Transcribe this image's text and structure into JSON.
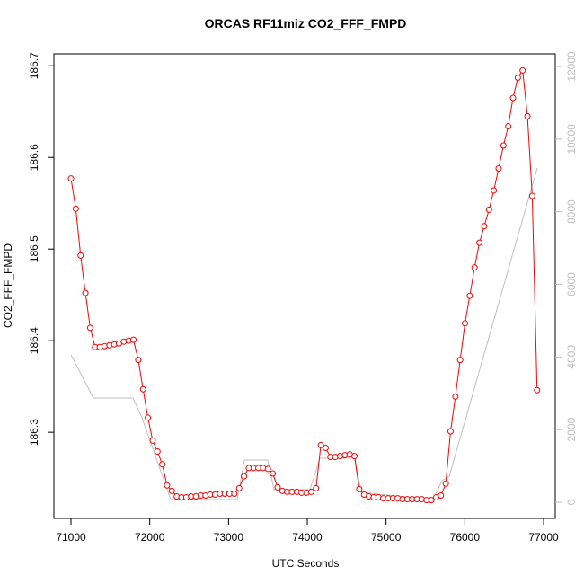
{
  "chart_data": {
    "type": "line",
    "title": "ORCAS RF11miz CO2_FFF_FMPD",
    "x_label": "UTC Seconds",
    "y_label": "CO2_FFF_FMPD",
    "xlim": [
      70783,
      77148
    ],
    "xticks": [
      71000,
      72000,
      73000,
      74000,
      75000,
      76000,
      77000
    ],
    "ylim": [
      186.206,
      186.713
    ],
    "yticks": [
      186.3,
      186.4,
      186.5,
      186.6,
      186.7
    ],
    "y2lim": [
      -445,
      12346
    ],
    "y2ticks": [
      0,
      2000,
      4000,
      6000,
      8000,
      10000,
      12000
    ],
    "series": [
      {
        "color": "#ff0000",
        "markers": true,
        "x": [
          71000,
          71061,
          71122,
          71183,
          71244,
          71305,
          71366,
          71427,
          71488,
          71549,
          71610,
          71671,
          71732,
          71793,
          71854,
          71915,
          71976,
          72037,
          72098,
          72159,
          72220,
          72281,
          72342,
          72403,
          72464,
          72525,
          72586,
          72647,
          72708,
          72769,
          72830,
          72891,
          72952,
          73013,
          73074,
          73135,
          73196,
          73257,
          73318,
          73379,
          73440,
          73501,
          73562,
          73623,
          73684,
          73745,
          73806,
          73867,
          73928,
          73989,
          74050,
          74111,
          74172,
          74233,
          74294,
          74355,
          74416,
          74477,
          74538,
          74599,
          74660,
          74721,
          74782,
          74843,
          74904,
          74965,
          75026,
          75087,
          75148,
          75209,
          75270,
          75331,
          75392,
          75453,
          75514,
          75575,
          75636,
          75697,
          75758,
          75819,
          75880,
          75941,
          76002,
          76063,
          76124,
          76185,
          76246,
          76307,
          76368,
          76429,
          76490,
          76551,
          76612,
          76673,
          76734,
          76795,
          76856,
          76917
        ],
        "values": [
          186.577,
          186.544,
          186.493,
          186.452,
          186.414,
          186.393,
          186.393,
          186.394,
          186.395,
          186.396,
          186.397,
          186.399,
          186.4,
          186.401,
          186.379,
          186.347,
          186.316,
          186.291,
          186.279,
          186.265,
          186.242,
          186.236,
          186.23,
          186.229,
          186.229,
          186.23,
          186.23,
          186.231,
          186.231,
          186.232,
          186.232,
          186.233,
          186.233,
          186.233,
          186.233,
          186.239,
          186.252,
          186.261,
          186.261,
          186.261,
          186.261,
          186.26,
          186.255,
          186.24,
          186.236,
          186.235,
          186.235,
          186.235,
          186.234,
          186.234,
          186.235,
          186.239,
          186.286,
          186.283,
          186.273,
          186.273,
          186.274,
          186.275,
          186.276,
          186.274,
          186.238,
          186.232,
          186.23,
          186.229,
          186.229,
          186.228,
          186.228,
          186.228,
          186.228,
          186.227,
          186.227,
          186.227,
          186.227,
          186.227,
          186.226,
          186.226,
          186.229,
          186.231,
          186.244,
          186.301,
          186.339,
          186.379,
          186.419,
          186.449,
          186.48,
          186.507,
          186.525,
          186.543,
          186.564,
          186.588,
          186.613,
          186.634,
          186.665,
          186.687,
          186.695,
          186.645,
          186.558,
          186.346
        ]
      },
      {
        "color": "#bebebe",
        "axis": "y2",
        "markers": false,
        "x": [
          71000,
          71285,
          71787,
          71901,
          72266,
          73110,
          73201,
          73498,
          73578,
          74034,
          74159,
          74604,
          74684,
          75597,
          75711,
          75802,
          76920
        ],
        "values": [
          4057,
          2870,
          2870,
          2326,
          74,
          74,
          1163,
          1163,
          346,
          346,
          1212,
          1212,
          272,
          74,
          594,
          717,
          9203
        ]
      }
    ]
  }
}
